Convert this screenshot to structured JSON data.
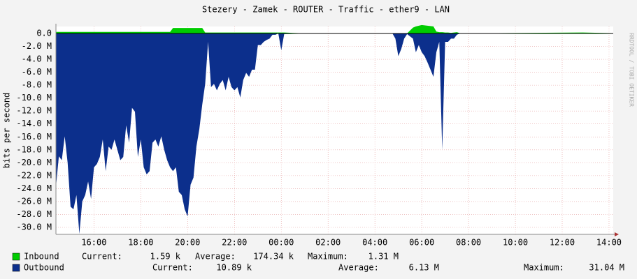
{
  "chart_data": {
    "type": "area",
    "title": "Stezery - Zamek - ROUTER - Traffic - ether9 - LAN",
    "y_label": "bits per second",
    "watermark": "RRDTOOL / TOBI OETIKER",
    "grid": true,
    "x": [
      14.375,
      14.5,
      14.625,
      14.75,
      14.875,
      15,
      15.125,
      15.25,
      15.375,
      15.5,
      15.625,
      15.75,
      15.875,
      16,
      16.125,
      16.25,
      16.375,
      16.5,
      16.625,
      16.75,
      16.875,
      17,
      17.125,
      17.25,
      17.375,
      17.5,
      17.625,
      17.75,
      17.875,
      18,
      18.125,
      18.25,
      18.375,
      18.5,
      18.625,
      18.75,
      18.875,
      19,
      19.125,
      19.25,
      19.375,
      19.5,
      19.625,
      19.75,
      19.875,
      20,
      20.125,
      20.25,
      20.375,
      20.5,
      20.625,
      20.75,
      20.875,
      21,
      21.125,
      21.25,
      21.375,
      21.5,
      21.625,
      21.75,
      21.875,
      22,
      22.125,
      22.25,
      22.375,
      22.5,
      22.625,
      22.75,
      22.875,
      23,
      23.125,
      23.25,
      23.375,
      23.5,
      23.625,
      23.75,
      23.875,
      24,
      24.125,
      25,
      28.75,
      28.875,
      29,
      29.125,
      29.25,
      29.375,
      29.625,
      29.75,
      29.875,
      30,
      30.125,
      30.25,
      30.375,
      30.5,
      30.625,
      30.75,
      30.875,
      31,
      31.125,
      31.25,
      31.375,
      31.5,
      31.625,
      31.75,
      36.875,
      38.125
    ],
    "series": [
      {
        "name": "Outbound",
        "color": "#0c2f8c",
        "values": [
          -23.7,
          -19,
          -19.6,
          -15.9,
          -20,
          -26.8,
          -27.2,
          -25,
          -31,
          -26,
          -25,
          -22.9,
          -25.6,
          -20.7,
          -20.2,
          -19.1,
          -16.4,
          -21.3,
          -17.5,
          -18,
          -16.4,
          -18,
          -19.6,
          -19.1,
          -14.2,
          -16.9,
          -11.5,
          -12.1,
          -19.1,
          -16.4,
          -20.7,
          -21.8,
          -21.3,
          -16.9,
          -16.4,
          -17.5,
          -15.9,
          -18,
          -19.6,
          -20.7,
          -21.3,
          -20.7,
          -24.5,
          -25,
          -27.2,
          -28.3,
          -23.4,
          -22.3,
          -17.5,
          -14.8,
          -11,
          -7.8,
          -1.3,
          -8.3,
          -7.8,
          -8.8,
          -7.8,
          -7.2,
          -8.8,
          -6.7,
          -8.3,
          -8.8,
          -8.3,
          -9.9,
          -7.2,
          -6.1,
          -6.7,
          -5.6,
          -5.6,
          -1.8,
          -1.8,
          -1.3,
          -1,
          -0.8,
          -0.2,
          -0.2,
          0,
          -2.6,
          -0.1,
          0,
          0,
          -0.8,
          -3.5,
          -2.4,
          -0.8,
          -0.1,
          -0.8,
          -2.9,
          -1.8,
          -2.9,
          -3.5,
          -4.5,
          -5.6,
          -6.7,
          -2.9,
          -1.3,
          -18,
          -1.3,
          -1.3,
          -0.8,
          -0.8,
          -0.2,
          0,
          0,
          0,
          0
        ],
        "stats": [
          {
            "label": "Current:",
            "value": "10.89 k"
          },
          {
            "label": "Average:",
            "value": "6.13 M"
          },
          {
            "label": "Maximum:",
            "value": "31.04 M"
          }
        ]
      },
      {
        "name": "Inbound",
        "color": "#00cc00",
        "values": [
          0.25,
          0.25,
          0.25,
          0.25,
          0.25,
          0.25,
          0.25,
          0.25,
          0.25,
          0.25,
          0.25,
          0.25,
          0.25,
          0.25,
          0.25,
          0.25,
          0.25,
          0.25,
          0.25,
          0.25,
          0.25,
          0.25,
          0.25,
          0.25,
          0.25,
          0.25,
          0.25,
          0.25,
          0.25,
          0.25,
          0.25,
          0.25,
          0.25,
          0.25,
          0.25,
          0.25,
          0.25,
          0.25,
          0.25,
          0.25,
          0.85,
          0.85,
          0.85,
          0.85,
          0.85,
          0.85,
          0.85,
          0.85,
          0.85,
          0.85,
          0.85,
          0.15,
          0.15,
          0.15,
          0.15,
          0.15,
          0.15,
          0.15,
          0.15,
          0.15,
          0.15,
          0.15,
          0.15,
          0.15,
          0.15,
          0.15,
          0.15,
          0.15,
          0.15,
          0.15,
          0.15,
          0.15,
          0.15,
          0.15,
          0.15,
          0.15,
          0.15,
          0.15,
          0.15,
          0.02,
          0.02,
          0.02,
          0.05,
          0.02,
          0.02,
          0.02,
          0.9,
          1.1,
          1.2,
          1.31,
          1.25,
          1.2,
          1.15,
          1.1,
          0.3,
          0.2,
          0.2,
          0.15,
          0.15,
          0.1,
          0.15,
          0.2,
          0.05,
          0.02,
          0.15,
          0.05
        ],
        "stats": [
          {
            "label": "Current:",
            "value": "1.59 k"
          },
          {
            "label": "Average:",
            "value": "174.34 k"
          },
          {
            "label": "Maximum:",
            "value": "1.31 M"
          }
        ]
      }
    ],
    "xlim": [
      14.375,
      38.18
    ],
    "xticks": [
      {
        "value": 16,
        "label": "16:00"
      },
      {
        "value": 18,
        "label": "18:00"
      },
      {
        "value": 20,
        "label": "20:00"
      },
      {
        "value": 22,
        "label": "22:00"
      },
      {
        "value": 24,
        "label": "00:00"
      },
      {
        "value": 26,
        "label": "02:00"
      },
      {
        "value": 28,
        "label": "04:00"
      },
      {
        "value": 30,
        "label": "06:00"
      },
      {
        "value": 32,
        "label": "08:00"
      },
      {
        "value": 34,
        "label": "10:00"
      },
      {
        "value": 36,
        "label": "12:00"
      },
      {
        "value": 38,
        "label": "14:00"
      }
    ],
    "ylim": [
      -31.08,
      1.08
    ],
    "yticks": [
      {
        "value": 0,
        "label": "0.0"
      },
      {
        "value": -2,
        "label": "-2.0 M"
      },
      {
        "value": -4,
        "label": "-4.0 M"
      },
      {
        "value": -6,
        "label": "-6.0 M"
      },
      {
        "value": -8,
        "label": "-8.0 M"
      },
      {
        "value": -10,
        "label": "-10.0 M"
      },
      {
        "value": -12,
        "label": "-12.0 M"
      },
      {
        "value": -14,
        "label": "-14.0 M"
      },
      {
        "value": -16,
        "label": "-16.0 M"
      },
      {
        "value": -18,
        "label": "-18.0 M"
      },
      {
        "value": -20,
        "label": "-20.0 M"
      },
      {
        "value": -22,
        "label": "-22.0 M"
      },
      {
        "value": -24,
        "label": "-24.0 M"
      },
      {
        "value": -26,
        "label": "-26.0 M"
      },
      {
        "value": -28,
        "label": "-28.0 M"
      },
      {
        "value": -30,
        "label": "-30.0 M"
      }
    ]
  }
}
